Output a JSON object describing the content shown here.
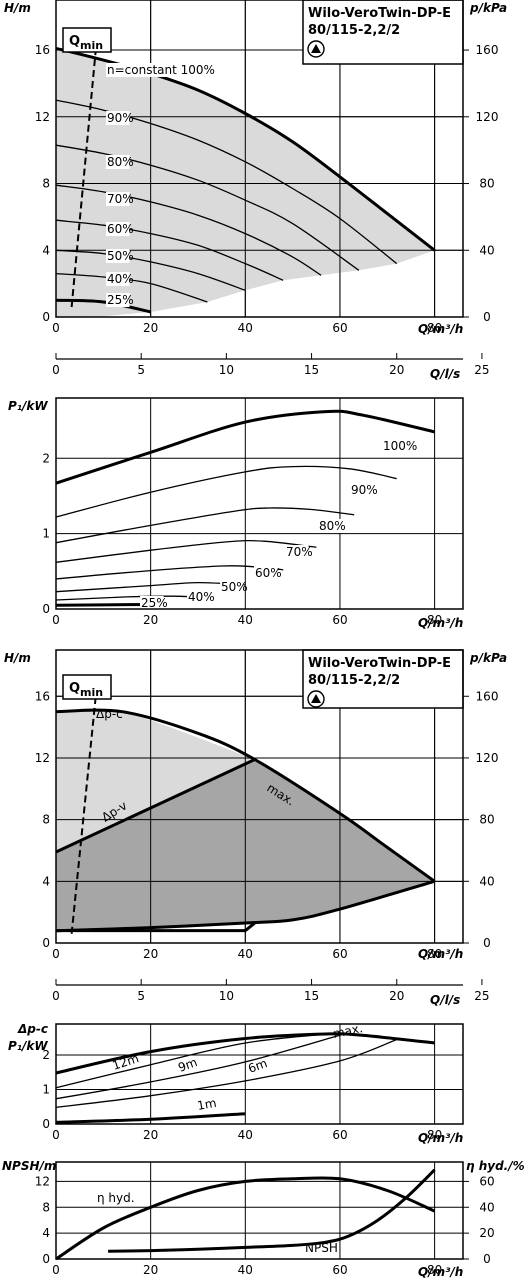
{
  "title_line1": "Wilo-VeroTwin-DP-E",
  "title_line2": "80/115-2,2/2",
  "qmin_label": "Q",
  "qmin_sub": "min",
  "axis_labels": {
    "H": "H/m",
    "p": "p/kPa",
    "Q_h": "Q/m³/h",
    "Q_s": "Q/l/s",
    "P1": "P₁/kW",
    "dpc_line": "Δp-c",
    "NPSH": "NPSH/m",
    "eta": "η hyd./%"
  },
  "colors": {
    "light_area": "#dadada",
    "dark_area": "#a6a6a6",
    "grid": "#000000"
  },
  "chart_data": [
    {
      "id": "speed_curves",
      "type": "line",
      "title": "Wilo-VeroTwin-DP-E 80/115-2,2/2",
      "xlabel": "Q/m³/h",
      "ylabel": "H/m",
      "y2label": "p/kPa",
      "xlim": [
        0,
        86
      ],
      "ylim": [
        0,
        19
      ],
      "y2lim": [
        0,
        190
      ],
      "xticks": [
        0,
        20,
        40,
        60,
        80
      ],
      "yticks": [
        0,
        4,
        8,
        12,
        16
      ],
      "y2ticks": [
        0,
        40,
        80,
        120,
        160
      ],
      "grid": true,
      "shaded_region": "operating area below 100% curve",
      "qmin_line": [
        [
          3.3,
          0.6
        ],
        [
          8.5,
          16.3
        ]
      ],
      "series": [
        {
          "name": "n=constant 100%",
          "x": [
            0,
            10,
            20,
            30,
            40,
            50,
            60,
            70,
            80
          ],
          "y": [
            16.1,
            15.4,
            14.6,
            13.6,
            12.2,
            10.5,
            8.4,
            6.2,
            4.0
          ]
        },
        {
          "name": "90%",
          "x": [
            0,
            10,
            20,
            30,
            40,
            50,
            60,
            72
          ],
          "y": [
            13.0,
            12.4,
            11.6,
            10.6,
            9.3,
            7.7,
            5.9,
            3.2
          ]
        },
        {
          "name": "80%",
          "x": [
            0,
            10,
            20,
            30,
            40,
            50,
            64
          ],
          "y": [
            10.3,
            9.8,
            9.1,
            8.2,
            7.0,
            5.6,
            2.8
          ]
        },
        {
          "name": "70%",
          "x": [
            0,
            10,
            20,
            30,
            40,
            50,
            56
          ],
          "y": [
            7.9,
            7.5,
            6.9,
            6.1,
            5.0,
            3.6,
            2.5
          ]
        },
        {
          "name": "60%",
          "x": [
            0,
            10,
            20,
            30,
            40,
            48
          ],
          "y": [
            5.8,
            5.5,
            5.0,
            4.3,
            3.2,
            2.2
          ]
        },
        {
          "name": "50%",
          "x": [
            0,
            10,
            20,
            30,
            40
          ],
          "y": [
            4.0,
            3.8,
            3.3,
            2.6,
            1.6
          ]
        },
        {
          "name": "40%",
          "x": [
            0,
            10,
            20,
            32
          ],
          "y": [
            2.6,
            2.4,
            2.0,
            0.9
          ]
        },
        {
          "name": "25%",
          "x": [
            0,
            10,
            20
          ],
          "y": [
            1.0,
            0.9,
            0.3
          ]
        }
      ]
    },
    {
      "id": "secondary_axis_top",
      "type": "line",
      "xlabel": "Q/l/s",
      "xlim": [
        0,
        23.9
      ],
      "xticks": [
        0,
        5,
        10,
        15,
        20,
        25
      ]
    },
    {
      "id": "power_curves",
      "type": "line",
      "xlabel": "Q/m³/h",
      "ylabel": "P₁/kW",
      "xlim": [
        0,
        86
      ],
      "ylim": [
        0,
        2.8
      ],
      "xticks": [
        0,
        20,
        40,
        60,
        80
      ],
      "yticks": [
        0,
        1,
        2
      ],
      "grid": true,
      "series": [
        {
          "name": "100%",
          "x": [
            0,
            20,
            40,
            57,
            65,
            80
          ],
          "y": [
            1.67,
            2.08,
            2.48,
            2.62,
            2.57,
            2.35
          ]
        },
        {
          "name": "90%",
          "x": [
            0,
            20,
            40,
            50,
            62,
            72
          ],
          "y": [
            1.22,
            1.55,
            1.82,
            1.89,
            1.86,
            1.73
          ]
        },
        {
          "name": "80%",
          "x": [
            0,
            20,
            38,
            45,
            54,
            63
          ],
          "y": [
            0.88,
            1.11,
            1.3,
            1.34,
            1.32,
            1.25
          ]
        },
        {
          "name": "70%",
          "x": [
            0,
            20,
            36,
            44,
            55
          ],
          "y": [
            0.62,
            0.78,
            0.89,
            0.9,
            0.82
          ]
        },
        {
          "name": "60%",
          "x": [
            0,
            20,
            35,
            42,
            48
          ],
          "y": [
            0.4,
            0.51,
            0.57,
            0.56,
            0.52
          ]
        },
        {
          "name": "50%",
          "x": [
            0,
            20,
            30,
            40
          ],
          "y": [
            0.23,
            0.31,
            0.35,
            0.32
          ]
        },
        {
          "name": "40%",
          "x": [
            0,
            15,
            25,
            32
          ],
          "y": [
            0.12,
            0.16,
            0.17,
            0.15
          ]
        },
        {
          "name": "25%",
          "x": [
            0,
            20
          ],
          "y": [
            0.05,
            0.06
          ]
        }
      ]
    },
    {
      "id": "control_mode",
      "type": "area",
      "title": "Wilo-VeroTwin-DP-E 80/115-2,2/2",
      "xlabel": "Q/m³/h",
      "ylabel": "H/m",
      "y2label": "p/kPa",
      "xlim": [
        0,
        86
      ],
      "ylim": [
        0,
        19
      ],
      "y2lim": [
        0,
        190
      ],
      "xticks": [
        0,
        20,
        40,
        60,
        80
      ],
      "yticks": [
        0,
        4,
        8,
        12,
        16
      ],
      "y2ticks": [
        0,
        40,
        80,
        120,
        160
      ],
      "grid": true,
      "qmin_line": [
        [
          3.3,
          0.6
        ],
        [
          8.5,
          16.3
        ]
      ],
      "series": [
        {
          "name": "Δp-c",
          "x": [
            0,
            14,
            42
          ],
          "y": [
            15.0,
            15.0,
            11.9
          ]
        },
        {
          "name": "max.",
          "x": [
            0,
            14,
            30,
            42,
            60,
            70,
            80
          ],
          "y": [
            15.0,
            15.0,
            13.6,
            11.9,
            8.4,
            6.2,
            4.0
          ]
        },
        {
          "name": "Δp-v",
          "x": [
            0,
            42
          ],
          "y": [
            5.9,
            11.9
          ]
        },
        {
          "name": "",
          "x": [
            0,
            20,
            40,
            50,
            60,
            80
          ],
          "y": [
            0.8,
            1.0,
            1.3,
            1.5,
            2.2,
            4.0
          ]
        }
      ]
    },
    {
      "id": "secondary_axis_bottom",
      "type": "line",
      "xlabel": "Q/l/s",
      "xlim": [
        0,
        23.9
      ],
      "xticks": [
        0,
        5,
        10,
        15,
        20,
        25
      ]
    },
    {
      "id": "power_control",
      "type": "line",
      "xlabel": "Q/m³/h",
      "ylabel": "Δp-c P₁/kW",
      "xlim": [
        0,
        86
      ],
      "ylim": [
        0,
        2.9
      ],
      "xticks": [
        0,
        20,
        40,
        60,
        80
      ],
      "yticks": [
        0,
        1,
        2
      ],
      "grid": true,
      "series": [
        {
          "name": "max.",
          "x": [
            0,
            20,
            40,
            57,
            65,
            80
          ],
          "y": [
            1.48,
            2.1,
            2.48,
            2.61,
            2.57,
            2.35
          ]
        },
        {
          "name": "12m",
          "x": [
            0,
            20,
            40,
            58
          ],
          "y": [
            1.05,
            1.72,
            2.35,
            2.62
          ]
        },
        {
          "name": "9m",
          "x": [
            0,
            20,
            40,
            61
          ],
          "y": [
            0.73,
            1.22,
            1.8,
            2.62
          ]
        },
        {
          "name": "6m",
          "x": [
            0,
            20,
            40,
            60,
            72
          ],
          "y": [
            0.48,
            0.82,
            1.25,
            1.83,
            2.45
          ]
        },
        {
          "name": "1m",
          "x": [
            0,
            20,
            40
          ],
          "y": [
            0.05,
            0.14,
            0.3
          ]
        }
      ]
    },
    {
      "id": "npsh_eta",
      "type": "line",
      "xlabel": "Q/m³/h",
      "ylabel": "NPSH/m",
      "y2label": "η hyd./%",
      "xlim": [
        0,
        86
      ],
      "ylim": [
        0,
        15
      ],
      "y2lim": [
        0,
        75
      ],
      "xticks": [
        0,
        20,
        40,
        60,
        80
      ],
      "yticks": [
        0,
        4,
        8,
        12
      ],
      "y2ticks": [
        0,
        20,
        40,
        60
      ],
      "grid": true,
      "series": [
        {
          "name": "η hyd.",
          "axis": "right",
          "x": [
            0,
            10,
            20,
            30,
            40,
            50,
            60,
            70,
            80
          ],
          "y": [
            0,
            24,
            40,
            53,
            60,
            62,
            62,
            53,
            37
          ]
        },
        {
          "name": "NPSH",
          "axis": "left",
          "x": [
            11,
            20,
            30,
            40,
            50,
            57,
            62,
            68,
            74,
            80
          ],
          "y": [
            1.2,
            1.3,
            1.5,
            1.8,
            2.1,
            2.6,
            3.6,
            6.0,
            9.5,
            13.8
          ]
        }
      ]
    }
  ]
}
